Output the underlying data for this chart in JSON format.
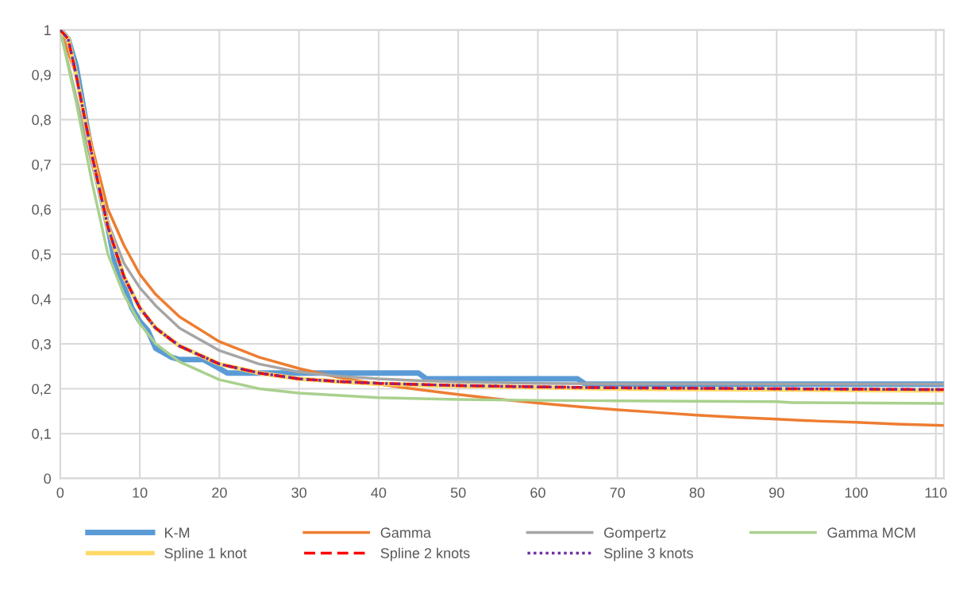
{
  "chart_data": {
    "type": "line",
    "xlim": [
      0,
      111
    ],
    "xticks": [
      0,
      10,
      20,
      30,
      40,
      50,
      60,
      70,
      80,
      90,
      100,
      110
    ],
    "ylim": [
      0,
      1
    ],
    "yticks": [
      0,
      {
        "value": 0.1,
        "label": "0,1"
      },
      {
        "value": 0.2,
        "label": "0,2"
      },
      {
        "value": 0.3,
        "label": "0,3"
      },
      {
        "value": 0.4,
        "label": "0,4"
      },
      {
        "value": 0.5,
        "label": "0,5"
      },
      {
        "value": 0.6,
        "label": "0,6"
      },
      {
        "value": 0.7,
        "label": "0,7"
      },
      {
        "value": 0.8,
        "label": "0,8"
      },
      {
        "value": 0.9,
        "label": "0,9"
      },
      1
    ],
    "grid": true,
    "legend": "bottom",
    "marker": "none",
    "series": [
      {
        "name": "K-M",
        "color": "#5b9bd5",
        "line_style": "solid",
        "x": [
          0,
          1,
          2,
          3,
          4,
          5,
          6,
          7,
          8,
          9,
          10,
          11,
          12,
          13,
          14,
          15,
          18,
          20,
          21,
          45,
          46,
          65,
          66,
          111
        ],
        "values": [
          1,
          0.98,
          0.92,
          0.82,
          0.72,
          0.64,
          0.56,
          0.47,
          0.43,
          0.38,
          0.35,
          0.33,
          0.29,
          0.28,
          0.27,
          0.265,
          0.265,
          0.245,
          0.235,
          0.235,
          0.222,
          0.222,
          0.21,
          0.21
        ]
      },
      {
        "name": "Gamma",
        "color": "#ed7d31",
        "line_style": "solid",
        "x": [
          0,
          2,
          4,
          6,
          8,
          10,
          12,
          15,
          20,
          25,
          30,
          35,
          40,
          45,
          50,
          55,
          60,
          65,
          70,
          75,
          80,
          85,
          90,
          95,
          100,
          105,
          111
        ],
        "values": [
          1,
          0.9,
          0.74,
          0.6,
          0.52,
          0.455,
          0.41,
          0.36,
          0.305,
          0.27,
          0.245,
          0.225,
          0.21,
          0.198,
          0.187,
          0.177,
          0.168,
          0.16,
          0.153,
          0.147,
          0.141,
          0.136,
          0.132,
          0.128,
          0.125,
          0.121,
          0.118
        ]
      },
      {
        "name": "Gompertz",
        "color": "#a5a5a5",
        "line_style": "solid",
        "x": [
          0,
          2,
          4,
          6,
          8,
          10,
          12,
          15,
          20,
          25,
          30,
          35,
          40,
          45,
          50,
          60,
          70,
          111
        ],
        "values": [
          1,
          0.85,
          0.7,
          0.57,
          0.48,
          0.425,
          0.385,
          0.335,
          0.285,
          0.255,
          0.237,
          0.228,
          0.222,
          0.218,
          0.215,
          0.212,
          0.211,
          0.21
        ]
      },
      {
        "name": "Gamma MCM",
        "color": "#a9d18e",
        "line_style": "solid",
        "x": [
          0,
          2,
          4,
          6,
          8,
          10,
          12,
          15,
          20,
          25,
          30,
          40,
          50,
          60,
          70,
          80,
          90,
          92,
          111
        ],
        "values": [
          1,
          0.84,
          0.66,
          0.5,
          0.41,
          0.345,
          0.3,
          0.26,
          0.22,
          0.2,
          0.19,
          0.18,
          0.176,
          0.174,
          0.173,
          0.172,
          0.171,
          0.169,
          0.167
        ]
      },
      {
        "name": "Spline 1 knot",
        "color": "#ffd966",
        "line_style": "solid",
        "x": [
          0,
          1,
          2,
          4,
          6,
          8,
          10,
          12,
          15,
          20,
          25,
          30,
          35,
          40,
          50,
          60,
          70,
          80,
          90,
          100,
          111
        ],
        "values": [
          1,
          0.98,
          0.9,
          0.72,
          0.56,
          0.45,
          0.38,
          0.335,
          0.295,
          0.255,
          0.235,
          0.222,
          0.216,
          0.211,
          0.206,
          0.203,
          0.2,
          0.199,
          0.198,
          0.197,
          0.196
        ]
      },
      {
        "name": "Spline 2 knots",
        "color": "#ff0000",
        "line_style": "dashed",
        "x": [
          0,
          1,
          2,
          4,
          6,
          8,
          10,
          12,
          15,
          20,
          25,
          30,
          35,
          40,
          50,
          60,
          70,
          80,
          90,
          100,
          111
        ],
        "values": [
          1,
          0.98,
          0.9,
          0.72,
          0.56,
          0.45,
          0.38,
          0.335,
          0.295,
          0.255,
          0.235,
          0.222,
          0.216,
          0.212,
          0.207,
          0.204,
          0.202,
          0.201,
          0.2,
          0.199,
          0.198
        ]
      },
      {
        "name": "Spline 3 knots",
        "color": "#7030a0",
        "line_style": "dotted",
        "x": [
          0,
          1,
          2,
          4,
          6,
          8,
          10,
          12,
          15,
          20,
          25,
          30,
          35,
          40,
          50,
          60,
          70,
          80,
          90,
          100,
          111
        ],
        "values": [
          1,
          0.98,
          0.9,
          0.72,
          0.56,
          0.45,
          0.38,
          0.335,
          0.295,
          0.255,
          0.235,
          0.222,
          0.216,
          0.212,
          0.207,
          0.204,
          0.202,
          0.201,
          0.2,
          0.199,
          0.198
        ]
      }
    ]
  }
}
